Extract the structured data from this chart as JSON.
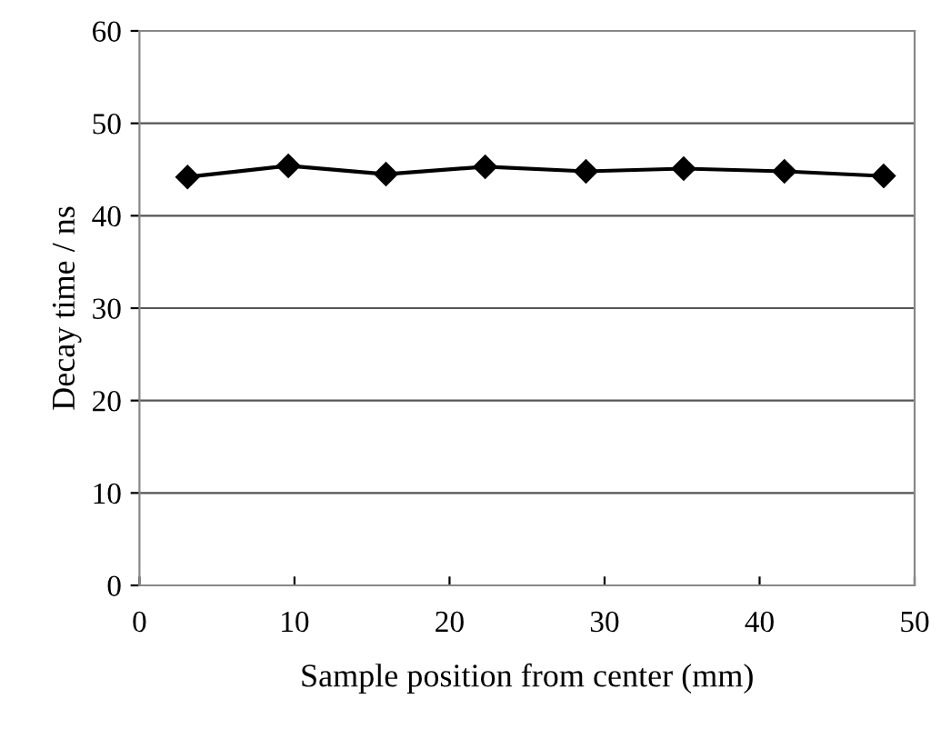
{
  "chart_data": {
    "type": "line",
    "xlabel": "Sample position from center (mm)",
    "ylabel": "Decay time / ns",
    "x": [
      3.1,
      9.6,
      15.9,
      22.3,
      28.8,
      35.1,
      41.6,
      48.0
    ],
    "series": [
      {
        "color": "#000000",
        "values": [
          44.2,
          45.4,
          44.5,
          45.3,
          44.8,
          45.1,
          44.8,
          44.3
        ]
      }
    ],
    "xlim": [
      0,
      50
    ],
    "xticks": [
      0,
      10,
      20,
      30,
      40,
      50
    ],
    "ylim": [
      0,
      60
    ],
    "yticks": [
      0,
      10,
      20,
      30,
      40,
      50,
      60
    ],
    "grid": "y",
    "marker": "diamond",
    "line_style": "solid"
  }
}
